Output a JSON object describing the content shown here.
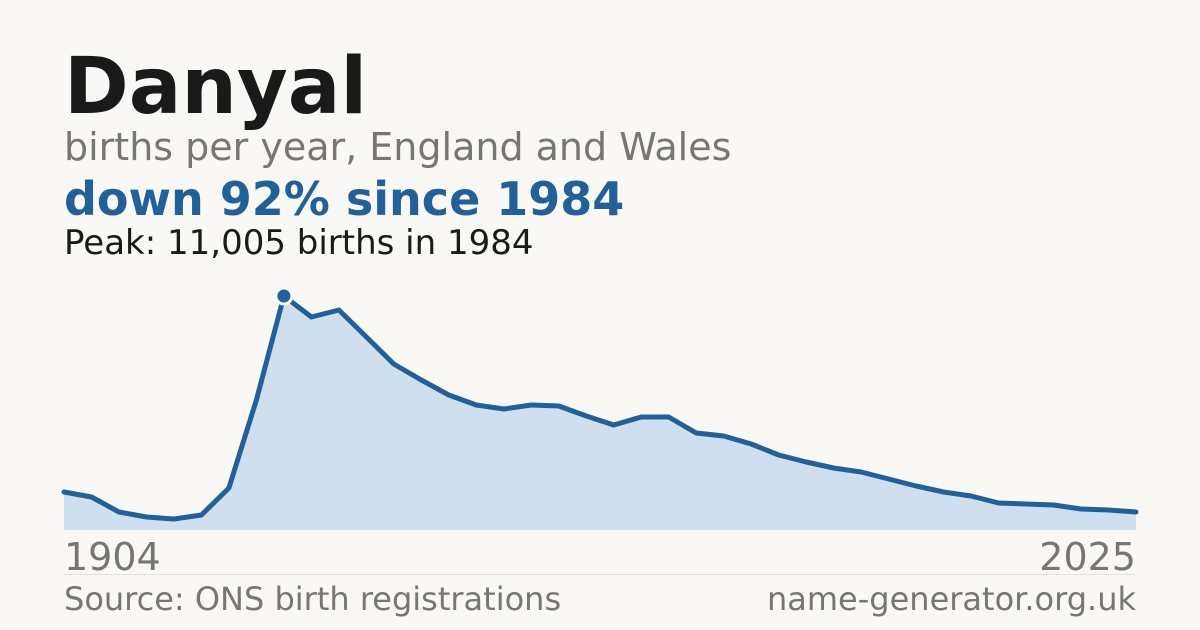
{
  "chart_data": {
    "type": "area",
    "title": "Danyal",
    "subtitle": "births per year, England and Wales",
    "headline": "down 92% since 1984",
    "peak_note": "Peak: 11,005 births in 1984",
    "source": "Source: ONS birth registrations",
    "site": "name-generator.org.uk",
    "categories": [
      "1904",
      null,
      null,
      null,
      null,
      null,
      null,
      null,
      null,
      null,
      null,
      null,
      null,
      null,
      null,
      null,
      null,
      null,
      null,
      null,
      null,
      null,
      null,
      null,
      null,
      null,
      null,
      null,
      null,
      null,
      null,
      null,
      null,
      null,
      null,
      null,
      null,
      null,
      null,
      "2025"
    ],
    "values": [
      1787,
      1552,
      847,
      611,
      517,
      705,
      1975,
      6114,
      11005,
      10017,
      10347,
      9077,
      7807,
      7055,
      6349,
      5879,
      5691,
      5879,
      5832,
      5361,
      4938,
      5314,
      5314,
      4562,
      4421,
      4045,
      3527,
      3198,
      2916,
      2728,
      2399,
      2069,
      1787,
      1599,
      1270,
      1223,
      1176,
      988,
      941,
      847
    ],
    "ylim": [
      0,
      11005
    ],
    "color": "#22609a",
    "fill_color": "#cfdfef"
  }
}
